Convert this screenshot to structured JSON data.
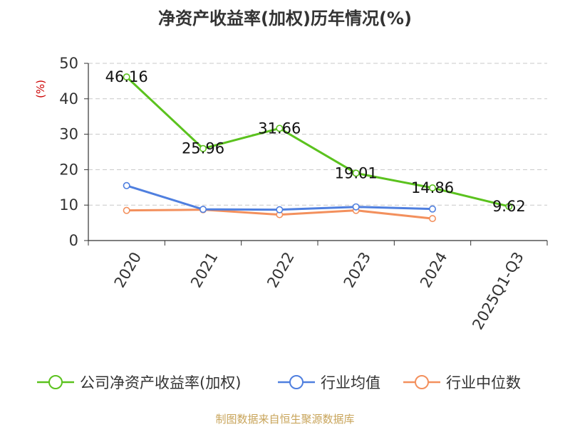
{
  "title": "净资产收益率(加权)历年情况(%)",
  "source": "制图数据来自恒生聚源数据库",
  "chart_data": {
    "type": "line",
    "categories": [
      "2020",
      "2021",
      "2022",
      "2023",
      "2024",
      "2025Q1-Q3"
    ],
    "ylabel": "(%)",
    "ylim": [
      0,
      50
    ],
    "yticks": [
      0,
      10,
      20,
      30,
      40,
      50
    ],
    "grid": true,
    "legend_position": "bottom",
    "series": [
      {
        "name": "公司净资产收益率(加权)",
        "color": "#5bc21e",
        "values": [
          46.16,
          25.96,
          31.66,
          19.01,
          14.86,
          9.62
        ],
        "labels": true
      },
      {
        "name": "行业均值",
        "color": "#4f7fdf",
        "values": [
          15.5,
          8.8,
          8.7,
          9.5,
          8.9,
          null
        ],
        "labels": false
      },
      {
        "name": "行业中位数",
        "color": "#f3905d",
        "values": [
          8.5,
          8.7,
          7.3,
          8.5,
          6.2,
          null
        ],
        "labels": false
      }
    ]
  }
}
